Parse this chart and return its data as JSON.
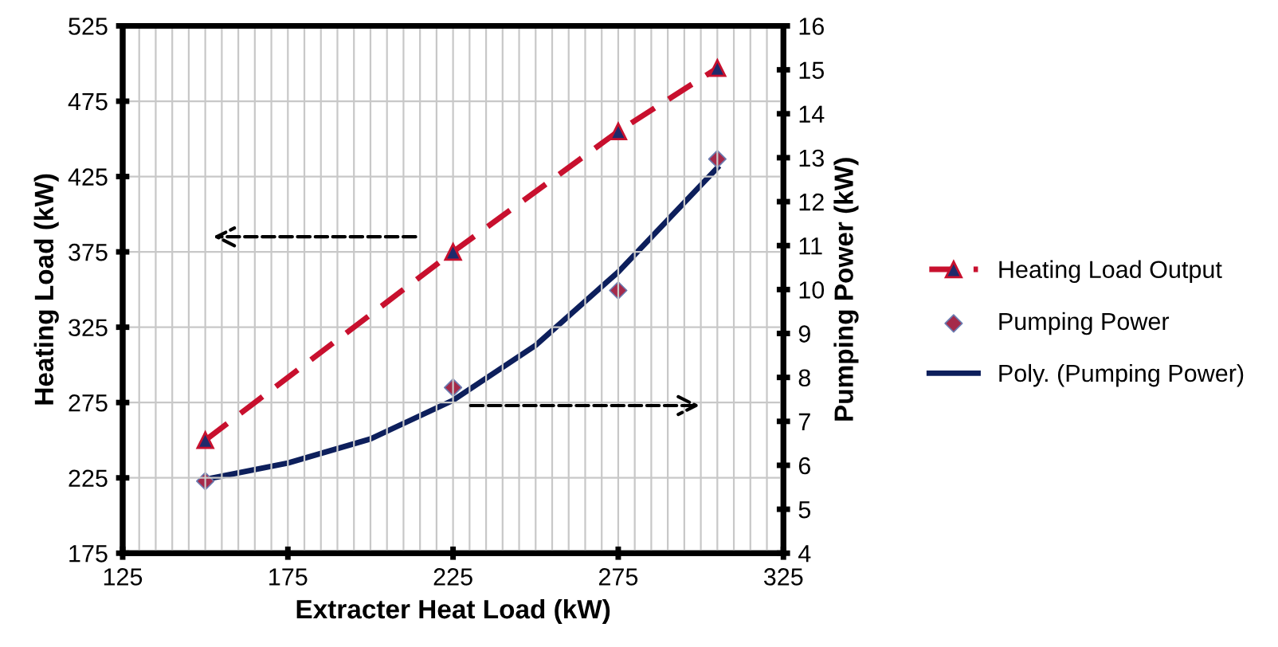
{
  "chart_data": {
    "type": "line",
    "xlabel": "Extracter Heat Load (kW)",
    "ylabel": "Heating Load (kW)",
    "y2label": "Pumping Power (kW)",
    "xlim": [
      125,
      325
    ],
    "xticks": [
      125,
      175,
      225,
      275,
      325
    ],
    "ylim": [
      175,
      525
    ],
    "yticks": [
      175,
      225,
      275,
      325,
      375,
      425,
      475,
      525
    ],
    "y2lim": [
      4,
      16
    ],
    "y2ticks": [
      4,
      5,
      6,
      7,
      8,
      9,
      10,
      11,
      12,
      13,
      14,
      15,
      16
    ],
    "grid": true,
    "legend": "right",
    "series": [
      {
        "name": "Heating Load Output",
        "color": "#c8102e",
        "marker": "triangle",
        "line_style": "dashed",
        "x": [
          150,
          225,
          275,
          305
        ],
        "values": [
          250,
          375,
          455,
          497
        ]
      },
      {
        "name": "Pumping Power",
        "type": "scatter",
        "color": "#a52a4a",
        "marker": "diamond",
        "axis": "y2",
        "x": [
          150,
          225,
          275,
          305
        ],
        "values": [
          5.64,
          7.77,
          9.98,
          12.97
        ]
      },
      {
        "name": "Poly. (Pumping Power)",
        "color": "#0d1f5c",
        "line_style": "solid",
        "axis": "y2",
        "x": [
          150,
          175,
          200,
          225,
          250,
          275,
          305
        ],
        "values": [
          5.68,
          6.05,
          6.6,
          7.48,
          8.73,
          10.4,
          12.77
        ]
      }
    ]
  }
}
